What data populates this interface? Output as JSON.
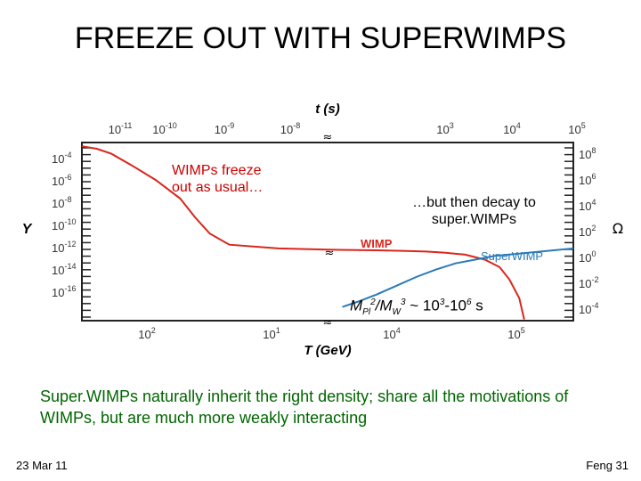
{
  "slide": {
    "title": "FREEZE OUT WITH SUPERWIMPS",
    "caption": "Super.WIMPs naturally inherit the right density; share all the motivations of WIMPs, but are much more weakly interacting",
    "footer_left": "23 Mar 11",
    "footer_right": "Feng  31"
  },
  "annotations": {
    "freeze_out": "WIMPs freeze out as usual…",
    "decay": "…but then decay to super.WIMPs",
    "lifetime_m": "M",
    "lifetime_pl": "Pl",
    "lifetime_2": "2",
    "lifetime_slash": "/M",
    "lifetime_w": "W",
    "lifetime_3": "3",
    "lifetime_tail_a": " ~ 10",
    "lifetime_tail_b": "3",
    "lifetime_tail_c": "-10",
    "lifetime_tail_d": "6",
    "lifetime_tail_e": " s"
  },
  "colors": {
    "wimp": "#d9261c",
    "superwimp": "#2a7ab8",
    "annotation": "#cc0000",
    "caption": "#006600"
  },
  "chart_data": {
    "type": "line",
    "title": "",
    "xlabel": "T (GeV)",
    "x2label": "t (s)",
    "ylabel": "Y",
    "y2label": "Ω",
    "x_ticks": [
      "10^2",
      "10^1",
      "10^4",
      "10^5"
    ],
    "x2_ticks": [
      "10^-11",
      "10^-10",
      "10^-9",
      "10^-8",
      "10^3",
      "10^4",
      "10^5"
    ],
    "y_ticks": [
      "10^-4",
      "10^-6",
      "10^-8",
      "10^-10",
      "10^-12",
      "10^-14",
      "10^-16"
    ],
    "y2_ticks": [
      "10^8",
      "10^6",
      "10^4",
      "10^2",
      "10^0",
      "10^-2",
      "10^-4"
    ],
    "ylim_log10": [
      -17.3,
      -3.0
    ],
    "axis_break_marks": "≈",
    "series": [
      {
        "name": "WIMP",
        "color": "#d9261c",
        "x": [
          0.0,
          0.03,
          0.06,
          0.1,
          0.15,
          0.2,
          0.23,
          0.26,
          0.3,
          0.4,
          0.5,
          0.6,
          0.66,
          0.7,
          0.74,
          0.78,
          0.82,
          0.85,
          0.87,
          0.89,
          0.9
        ],
        "log10_Y": [
          -3.3,
          -3.5,
          -3.9,
          -4.8,
          -6.0,
          -7.5,
          -9.0,
          -10.3,
          -11.2,
          -11.5,
          -11.6,
          -11.65,
          -11.7,
          -11.75,
          -11.85,
          -12.0,
          -12.4,
          -13.0,
          -14.0,
          -15.5,
          -17.2
        ]
      },
      {
        "name": "Super.WIMP",
        "color": "#2a7ab8",
        "x": [
          0.53,
          0.56,
          0.6,
          0.64,
          0.68,
          0.72,
          0.76,
          0.8,
          0.84,
          0.88,
          0.92,
          0.96,
          1.0
        ],
        "log10_Y": [
          -16.2,
          -15.8,
          -15.2,
          -14.5,
          -13.8,
          -13.2,
          -12.7,
          -12.4,
          -12.1,
          -11.95,
          -11.8,
          -11.65,
          -11.5
        ]
      }
    ],
    "labels": {
      "wimp": "WIMP",
      "superwimp": "SuperWIMP"
    }
  }
}
